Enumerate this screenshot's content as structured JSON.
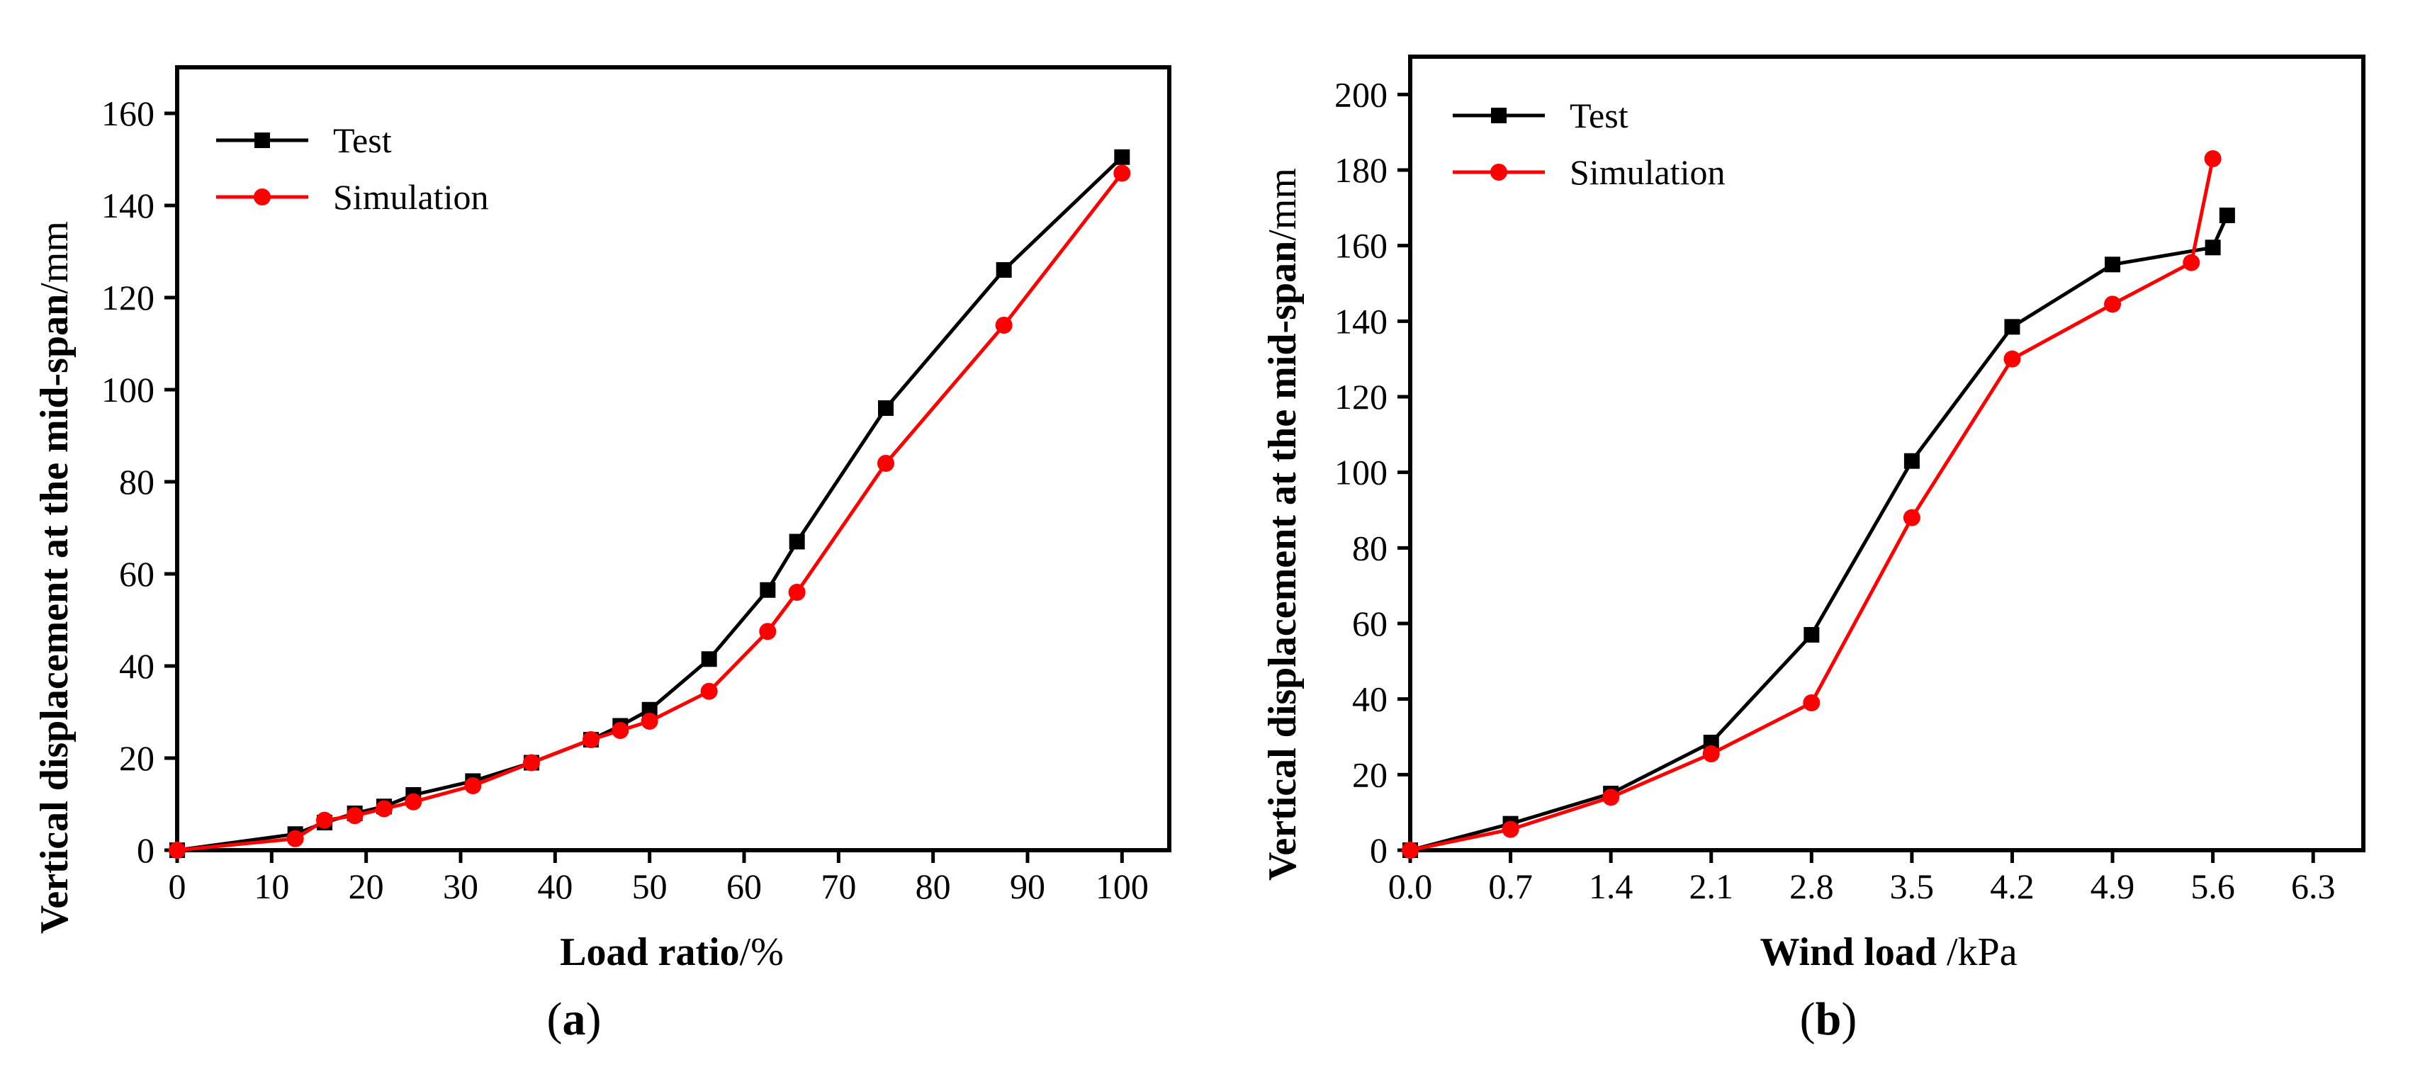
{
  "figure": {
    "panel_a_label": {
      "open": "(",
      "letter": "a",
      "close": ")"
    },
    "panel_b_label": {
      "open": "(",
      "letter": "b",
      "close": ")"
    }
  },
  "chart_data": [
    {
      "type": "line",
      "panel": "a",
      "xlabel_bold": "Load ratio",
      "xlabel_rest": "/%",
      "ylabel_bold": "Vertical displacement at the mid-span",
      "ylabel_rest": "/mm",
      "xlim": [
        0,
        105
      ],
      "ylim": [
        0,
        170
      ],
      "xticks": [
        0,
        10,
        20,
        30,
        40,
        50,
        60,
        70,
        80,
        90,
        100
      ],
      "yticks": [
        0,
        20,
        40,
        60,
        80,
        100,
        120,
        140,
        160
      ],
      "legend_position": "top-left",
      "series": [
        {
          "name": "Test",
          "color": "#000000",
          "marker": "square",
          "x": [
            0,
            12.5,
            15.6,
            18.8,
            21.9,
            25,
            31.3,
            37.5,
            43.8,
            46.9,
            50,
            56.3,
            62.5,
            65.6,
            75,
            87.5,
            100
          ],
          "y": [
            0,
            3.5,
            6,
            8,
            9.5,
            12,
            15,
            19,
            24,
            27,
            30.5,
            41.5,
            56.5,
            67,
            96,
            126,
            150.5
          ]
        },
        {
          "name": "Simulation",
          "color": "#ff0000",
          "marker": "circle",
          "x": [
            0,
            12.5,
            15.6,
            18.8,
            21.9,
            25,
            31.3,
            37.5,
            43.8,
            46.9,
            50,
            56.3,
            62.5,
            65.6,
            75,
            87.5,
            100
          ],
          "y": [
            0,
            2.5,
            6.5,
            7.5,
            9,
            10.5,
            14,
            19,
            24,
            26,
            28,
            34.5,
            47.5,
            56,
            84,
            114,
            147
          ]
        }
      ]
    },
    {
      "type": "line",
      "panel": "b",
      "xlabel_bold": "Wind load",
      "xlabel_rest": " /kPa",
      "ylabel_bold": "Vertical displacement at the mid-span",
      "ylabel_rest": "/mm",
      "xlim": [
        0,
        6.65
      ],
      "ylim": [
        0,
        210
      ],
      "xticks": [
        "0.0",
        "0.7",
        "1.4",
        "2.1",
        "2.8",
        "3.5",
        "4.2",
        "4.9",
        "5.6",
        "6.3"
      ],
      "yticks": [
        0,
        20,
        40,
        60,
        80,
        100,
        120,
        140,
        160,
        180,
        200
      ],
      "legend_position": "top-left",
      "series": [
        {
          "name": "Test",
          "color": "#000000",
          "marker": "square",
          "x": [
            0,
            0.7,
            1.4,
            2.1,
            2.8,
            3.5,
            4.2,
            4.9,
            5.6,
            5.7
          ],
          "y": [
            0,
            7,
            15,
            28.5,
            57,
            103,
            138.5,
            155,
            159.5,
            168
          ]
        },
        {
          "name": "Simulation",
          "color": "#ff0000",
          "marker": "circle",
          "x": [
            0,
            0.7,
            1.4,
            2.1,
            2.8,
            3.5,
            4.2,
            4.9,
            5.45,
            5.6
          ],
          "y": [
            0,
            5.5,
            14,
            25.5,
            39,
            88,
            130,
            144.5,
            155.5,
            183
          ]
        }
      ]
    }
  ]
}
